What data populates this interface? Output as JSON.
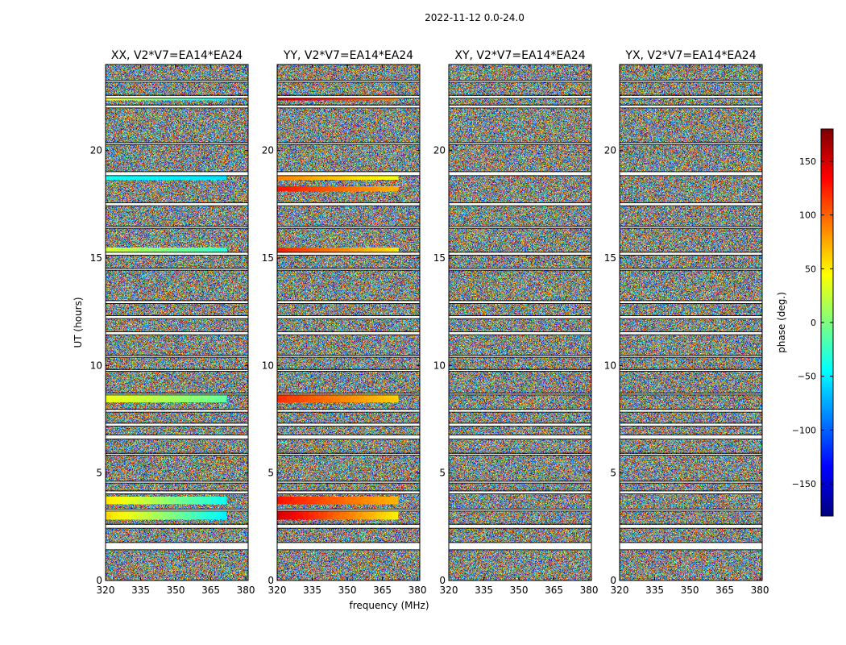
{
  "chart_data": {
    "type": "heatmap",
    "title": "2022-11-12 0.0-24.0",
    "xlabel": "frequency (MHz)",
    "ylabel": "UT (hours)",
    "xlim": [
      320,
      381
    ],
    "ylim": [
      0,
      24
    ],
    "xticks": [
      320,
      335,
      350,
      365,
      380
    ],
    "yticks": [
      0,
      5,
      10,
      15,
      20
    ],
    "panels": [
      {
        "title": "XX, V2*V7=EA14*EA24",
        "pol": "XX"
      },
      {
        "title": "YY, V2*V7=EA14*EA24",
        "pol": "YY"
      },
      {
        "title": "XY, V2*V7=EA14*EA24",
        "pol": "XY"
      },
      {
        "title": "YX, V2*V7=EA14*EA24",
        "pol": "YX"
      }
    ],
    "colorbar": {
      "label": "phase (deg.)",
      "range": [
        -180,
        180
      ],
      "ticks": [
        150,
        100,
        50,
        0,
        -50,
        -100,
        -150
      ],
      "tick_labels": [
        "150",
        "100",
        "50",
        "0",
        "−50",
        "−100",
        "−150"
      ],
      "colormap": "jet"
    },
    "flagged_ut_bands_hours": [
      [
        1.45,
        1.75
      ],
      [
        2.45,
        2.6
      ],
      [
        3.25,
        3.3
      ],
      [
        4.05,
        4.15
      ],
      [
        4.55,
        4.6
      ],
      [
        5.85,
        5.9
      ],
      [
        6.6,
        6.75
      ],
      [
        7.2,
        7.3
      ],
      [
        7.85,
        7.95
      ],
      [
        8.65,
        8.7
      ],
      [
        9.75,
        9.8
      ],
      [
        10.4,
        10.45
      ],
      [
        11.45,
        11.55
      ],
      [
        12.2,
        12.3
      ],
      [
        12.9,
        13.0
      ],
      [
        14.45,
        14.5
      ],
      [
        15.15,
        15.25
      ],
      [
        16.4,
        16.45
      ],
      [
        17.45,
        17.55
      ],
      [
        18.85,
        19.0
      ],
      [
        20.3,
        20.35
      ],
      [
        22.0,
        22.1
      ],
      [
        22.45,
        22.55
      ],
      [
        23.2,
        23.25
      ]
    ],
    "coherent_phase_bands": {
      "XX": [
        {
          "ut": [
            2.85,
            3.35
          ],
          "phase_start": 60,
          "phase_end": -70
        },
        {
          "ut": [
            3.55,
            3.9
          ],
          "phase_start": 55,
          "phase_end": -60
        },
        {
          "ut": [
            8.3,
            8.65
          ],
          "phase_start": 40,
          "phase_end": -20
        },
        {
          "ut": [
            15.25,
            15.5
          ],
          "phase_start": 30,
          "phase_end": -40
        },
        {
          "ut": [
            18.65,
            18.85
          ],
          "phase_start": -40,
          "phase_end": -60
        },
        {
          "ut": [
            22.35,
            22.55
          ],
          "phase_start": 45,
          "phase_end": -70
        }
      ],
      "YY": [
        {
          "ut": [
            2.85,
            3.35
          ],
          "phase_start": 150,
          "phase_end": 30
        },
        {
          "ut": [
            3.55,
            3.9
          ],
          "phase_start": 130,
          "phase_end": 60
        },
        {
          "ut": [
            8.3,
            8.65
          ],
          "phase_start": 120,
          "phase_end": 50
        },
        {
          "ut": [
            15.25,
            15.5
          ],
          "phase_start": 125,
          "phase_end": 40
        },
        {
          "ut": [
            18.1,
            18.35
          ],
          "phase_start": 130,
          "phase_end": 60
        },
        {
          "ut": [
            18.65,
            18.85
          ],
          "phase_start": 90,
          "phase_end": 30
        },
        {
          "ut": [
            22.35,
            22.55
          ],
          "phase_start": 150,
          "phase_end": 80
        }
      ],
      "XY": [],
      "YX": []
    }
  }
}
